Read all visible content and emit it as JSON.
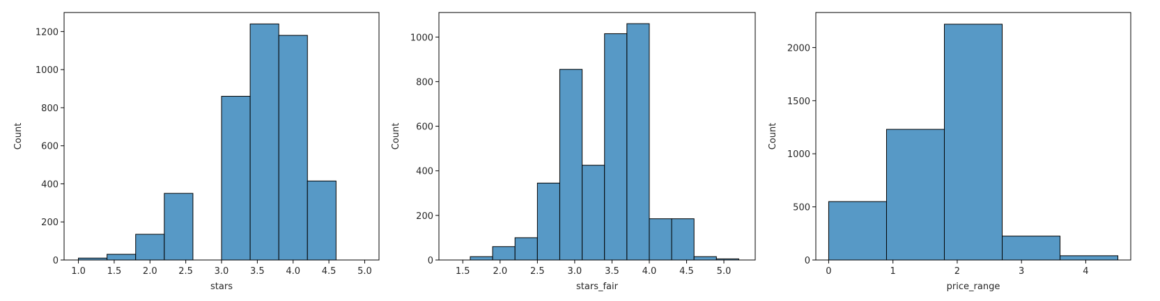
{
  "chart_data": [
    {
      "type": "bar",
      "xlabel": "stars",
      "ylabel": "Count",
      "xlim": [
        0.8,
        5.2
      ],
      "ylim": [
        0,
        1300
      ],
      "xticks": [
        "1.0",
        "1.5",
        "2.0",
        "2.5",
        "3.0",
        "3.5",
        "4.0",
        "4.5",
        "5.0"
      ],
      "yticks": [
        "0",
        "200",
        "400",
        "600",
        "800",
        "1000",
        "1200"
      ],
      "bin_edges": [
        1.0,
        1.4,
        1.8,
        2.2,
        2.6,
        3.0,
        3.4,
        3.8,
        4.2,
        4.6,
        5.0
      ],
      "values": [
        10,
        30,
        135,
        350,
        0,
        860,
        1240,
        1180,
        415,
        0
      ]
    },
    {
      "type": "bar",
      "xlabel": "stars_fair",
      "ylabel": "Count",
      "xlim": [
        1.18,
        5.42
      ],
      "ylim": [
        0,
        1110
      ],
      "xticks": [
        "1.5",
        "2.0",
        "2.5",
        "3.0",
        "3.5",
        "4.0",
        "4.5",
        "5.0"
      ],
      "yticks": [
        "0",
        "200",
        "400",
        "600",
        "800",
        "1000"
      ],
      "bin_edges": [
        1.6,
        1.9,
        2.2,
        2.5,
        2.8,
        3.1,
        3.4,
        3.7,
        4.0,
        4.3,
        4.6,
        4.9,
        5.2
      ],
      "values": [
        15,
        60,
        100,
        345,
        855,
        425,
        1015,
        1060,
        185,
        185,
        15,
        5
      ]
    },
    {
      "type": "bar",
      "xlabel": "price_range",
      "ylabel": "Count",
      "xlim": [
        -0.2,
        4.7
      ],
      "ylim": [
        0,
        2330
      ],
      "xticks": [
        "0",
        "1",
        "2",
        "3",
        "4"
      ],
      "yticks": [
        "0",
        "500",
        "1000",
        "1500",
        "2000"
      ],
      "bin_edges": [
        0,
        0.9,
        1.8,
        2.7,
        3.6,
        4.5
      ],
      "values": [
        550,
        1230,
        2220,
        225,
        40
      ]
    }
  ],
  "colors": {
    "bar_fill": "#5799c6",
    "bar_edge": "#000000",
    "axis": "#000000",
    "text": "#262626"
  }
}
